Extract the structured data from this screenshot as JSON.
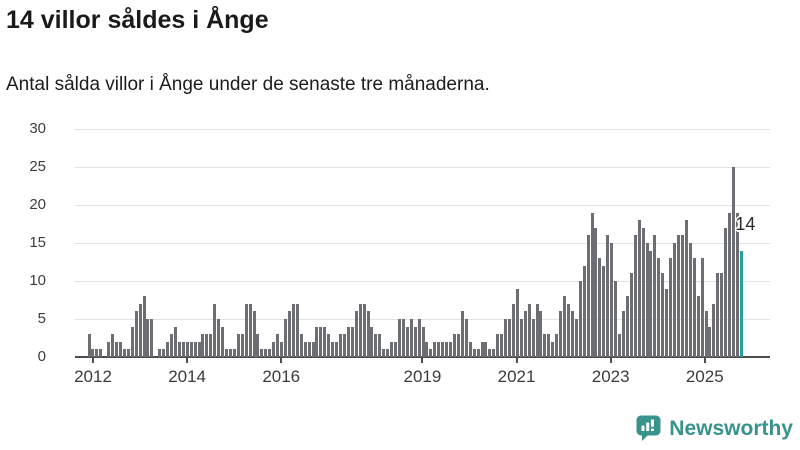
{
  "header": {
    "title": "14 villor såldes i Ånge",
    "subtitle": "Antal sålda villor i Ånge under de senaste tre månaderna."
  },
  "chart_data": {
    "type": "bar",
    "title": "14 villor såldes i Ånge",
    "subtitle": "Antal sålda villor i Ånge under de senaste tre månaderna.",
    "unit": "sålda villor (rullande 3 månader)",
    "frequency": "monthly",
    "start_month": "2011-12",
    "end_month": "2025-10",
    "values": [
      3,
      1,
      1,
      1,
      0,
      2,
      3,
      2,
      2,
      1,
      1,
      4,
      6,
      7,
      8,
      5,
      5,
      0,
      1,
      1,
      2,
      3,
      4,
      2,
      2,
      2,
      2,
      2,
      2,
      3,
      3,
      3,
      7,
      5,
      4,
      1,
      1,
      1,
      3,
      3,
      7,
      7,
      6,
      3,
      1,
      1,
      1,
      2,
      3,
      2,
      5,
      6,
      7,
      7,
      3,
      2,
      2,
      2,
      4,
      4,
      4,
      3,
      2,
      2,
      3,
      3,
      4,
      4,
      6,
      7,
      7,
      6,
      4,
      3,
      3,
      1,
      1,
      2,
      2,
      5,
      5,
      4,
      5,
      4,
      5,
      4,
      2,
      1,
      2,
      2,
      2,
      2,
      2,
      3,
      3,
      6,
      5,
      2,
      1,
      1,
      2,
      2,
      1,
      1,
      3,
      3,
      5,
      5,
      7,
      9,
      5,
      6,
      7,
      5,
      7,
      6,
      3,
      3,
      2,
      3,
      6,
      8,
      7,
      6,
      5,
      10,
      12,
      16,
      19,
      17,
      13,
      12,
      16,
      15,
      10,
      3,
      6,
      8,
      11,
      16,
      18,
      17,
      15,
      14,
      16,
      13,
      11,
      9,
      13,
      15,
      16,
      16,
      18,
      15,
      13,
      8,
      13,
      6,
      4,
      7,
      11,
      11,
      17,
      19,
      25,
      19,
      14
    ],
    "highlight_index": 166,
    "highlight_value_label": "14",
    "y_ticks": [
      0,
      5,
      10,
      15,
      20,
      25,
      30
    ],
    "ylim": [
      0,
      30
    ],
    "x_tick_years": [
      2012,
      2014,
      2016,
      2019,
      2021,
      2023,
      2025
    ],
    "x_tick_labels": [
      "2012",
      "2014",
      "2016",
      "2019",
      "2021",
      "2023",
      "2025"
    ],
    "grid": true,
    "legend": "none",
    "bar_color": "#6c6e74",
    "highlight_color": "#2a9e9e",
    "grid_color": "#e2e2e2",
    "axis_color": "#4d4d4d",
    "label_color": "#3c3c3c"
  },
  "footer": {
    "brand": "Newsworthy",
    "brand_color": "#37938c",
    "logo_icon": "newsworthy-speech-bubble-chart-icon"
  }
}
